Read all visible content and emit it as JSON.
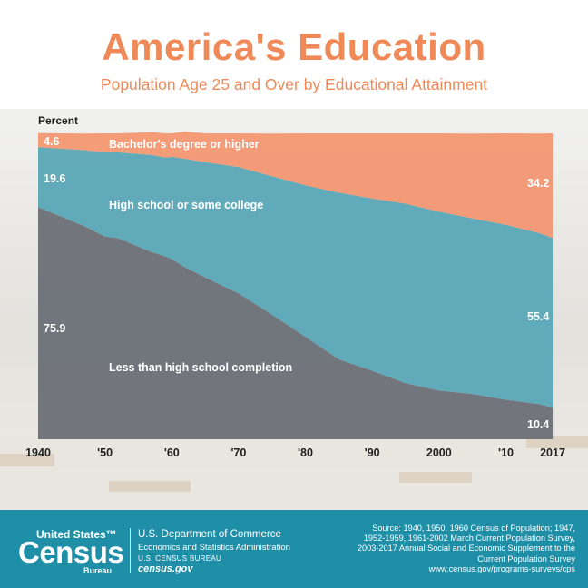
{
  "title": "America's Education",
  "subtitle": "Population Age 25 and Over by Educational Attainment",
  "colors": {
    "title": "#ef8a58",
    "bachelors": "#f39672",
    "high_school": "#5aa7b6",
    "less_than_hs": "#686d74",
    "footer": "#1f8fa8"
  },
  "chart_data": {
    "type": "area",
    "stacked": true,
    "ylabel": "Percent",
    "ylim": [
      0,
      100
    ],
    "x_tick_labels": [
      "1940",
      "'50",
      "'60",
      "'70",
      "'80",
      "'90",
      "2000",
      "'10",
      "2017"
    ],
    "x_tick_years": [
      1940,
      1950,
      1960,
      1970,
      1980,
      1990,
      2000,
      2010,
      2017
    ],
    "xlim": [
      1940,
      2017
    ],
    "series": [
      {
        "name": "Less than high school completion",
        "x": [
          1940,
          1947,
          1950,
          1952,
          1957,
          1959,
          1960,
          1962,
          1965,
          1970,
          1975,
          1980,
          1985,
          1990,
          1995,
          2000,
          2005,
          2010,
          2015,
          2017
        ],
        "values": [
          75.9,
          69.6,
          66.3,
          65.7,
          61.2,
          59.8,
          58.9,
          56.2,
          52.9,
          47.7,
          40.7,
          33.5,
          26.1,
          22.4,
          18.3,
          15.9,
          14.8,
          12.9,
          11.5,
          10.4
        ]
      },
      {
        "name": "High school or some college",
        "x": [
          1940,
          1947,
          1950,
          1952,
          1957,
          1959,
          1960,
          1962,
          1965,
          1970,
          1975,
          1980,
          1985,
          1990,
          1995,
          2000,
          2005,
          2010,
          2015,
          2017
        ],
        "values": [
          19.6,
          24.9,
          27.5,
          28.1,
          31.7,
          32.3,
          33.4,
          35.5,
          37.7,
          41.3,
          45.3,
          49.5,
          54.5,
          56.3,
          58.7,
          58.5,
          57.4,
          57.2,
          55.9,
          55.4
        ]
      },
      {
        "name": "Bachelor's degree or higher",
        "x": [
          1940,
          1947,
          1950,
          1952,
          1957,
          1959,
          1960,
          1962,
          1965,
          1970,
          1975,
          1980,
          1985,
          1990,
          1995,
          2000,
          2005,
          2010,
          2015,
          2017
        ],
        "values": [
          4.6,
          5.4,
          6.2,
          6.2,
          7.5,
          7.9,
          7.7,
          8.9,
          9.4,
          11.0,
          13.9,
          17.0,
          19.4,
          21.3,
          23.0,
          25.6,
          27.7,
          29.9,
          32.5,
          34.2
        ]
      }
    ],
    "labels": {
      "bachelors": "Bachelor's degree or higher",
      "high_school": "High school or some college",
      "less_than_hs": "Less than high school completion",
      "bachelors_1940": "4.6",
      "high_school_1940": "19.6",
      "less_than_hs_1940": "75.9",
      "bachelors_2017": "34.2",
      "high_school_2017": "55.4",
      "less_than_hs_2017": "10.4"
    }
  },
  "footer": {
    "logo_top": "United States™",
    "logo_main": "Census",
    "logo_sub": "Bureau",
    "dept": "U.S. Department of Commerce",
    "esa": "Economics and Statistics Administration",
    "bureau": "U.S. CENSUS BUREAU",
    "site": "census.gov",
    "source_lines": [
      "Source: 1940, 1950, 1960 Census of Population; 1947,",
      "1952-1959, 1961-2002 March Current Population Survey,",
      "2003-2017 Annual Social and Economic Supplement to the",
      "Current Population Survey",
      "www.census.gov/programs-surveys/cps"
    ]
  }
}
